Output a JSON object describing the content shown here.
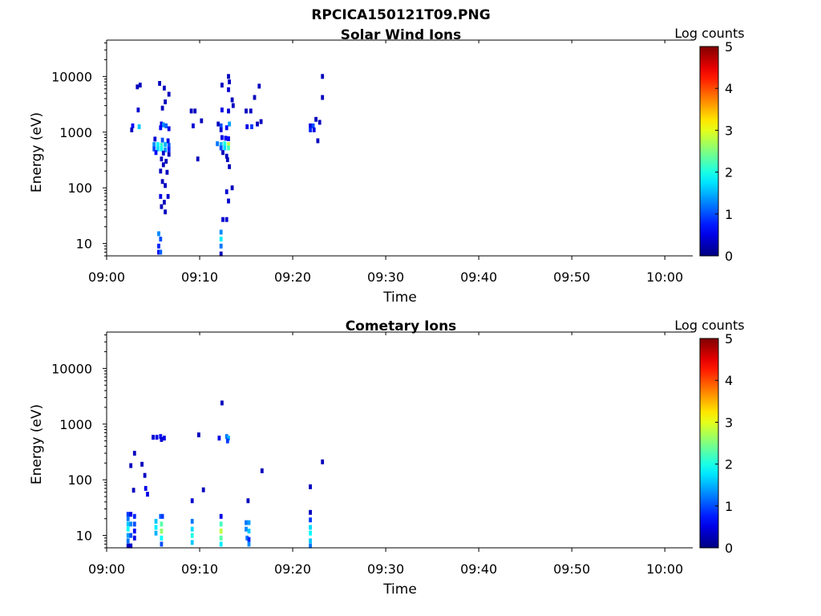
{
  "figure_title": "RPCICA150121T09.PNG",
  "chart_data": [
    {
      "type": "heatmap",
      "title": "Solar Wind Ions",
      "xlabel": "Time",
      "ylabel": "Energy (eV)",
      "y_scale": "log",
      "ylim": [
        6,
        45000
      ],
      "xlim": [
        "09:00",
        "10:03"
      ],
      "x_ticks": [
        "09:00",
        "09:10",
        "09:20",
        "09:30",
        "09:40",
        "09:50",
        "10:00"
      ],
      "y_ticks": [
        "10",
        "100",
        "1000",
        "10000"
      ],
      "colorbar": {
        "label": "Log counts",
        "range": [
          0,
          5
        ],
        "ticks": [
          "0",
          "1",
          "2",
          "3",
          "4",
          "5"
        ],
        "colormap": "jet"
      },
      "cells": [
        {
          "t": 3.3,
          "e": 6500,
          "v": 0.3
        },
        {
          "t": 3.6,
          "e": 7000,
          "v": 0.3
        },
        {
          "t": 3.4,
          "e": 2500,
          "v": 0.4
        },
        {
          "t": 2.8,
          "e": 1300,
          "v": 0.6
        },
        {
          "t": 3.5,
          "e": 1250,
          "v": 1.6
        },
        {
          "t": 2.7,
          "e": 1100,
          "v": 0.3
        },
        {
          "t": 5.7,
          "e": 7500,
          "v": 0.3
        },
        {
          "t": 6.2,
          "e": 6200,
          "v": 0.3
        },
        {
          "t": 6.7,
          "e": 4800,
          "v": 0.3
        },
        {
          "t": 6.3,
          "e": 3500,
          "v": 0.3
        },
        {
          "t": 6.0,
          "e": 2700,
          "v": 0.3
        },
        {
          "t": 5.9,
          "e": 1400,
          "v": 0.5
        },
        {
          "t": 6.1,
          "e": 1350,
          "v": 1.3
        },
        {
          "t": 6.4,
          "e": 1300,
          "v": 1.1
        },
        {
          "t": 5.8,
          "e": 1200,
          "v": 0.6
        },
        {
          "t": 6.7,
          "e": 1150,
          "v": 0.5
        },
        {
          "t": 5.2,
          "e": 750,
          "v": 0.4
        },
        {
          "t": 6.0,
          "e": 720,
          "v": 1.0
        },
        {
          "t": 6.6,
          "e": 700,
          "v": 0.5
        },
        {
          "t": 5.1,
          "e": 600,
          "v": 1.3
        },
        {
          "t": 5.5,
          "e": 600,
          "v": 1.8
        },
        {
          "t": 5.9,
          "e": 580,
          "v": 2.1
        },
        {
          "t": 6.3,
          "e": 600,
          "v": 1.5
        },
        {
          "t": 6.7,
          "e": 580,
          "v": 1.0
        },
        {
          "t": 5.1,
          "e": 500,
          "v": 1.0
        },
        {
          "t": 5.5,
          "e": 500,
          "v": 1.7
        },
        {
          "t": 5.9,
          "e": 500,
          "v": 1.9
        },
        {
          "t": 6.3,
          "e": 480,
          "v": 1.4
        },
        {
          "t": 6.7,
          "e": 490,
          "v": 0.8
        },
        {
          "t": 5.3,
          "e": 430,
          "v": 0.6
        },
        {
          "t": 6.1,
          "e": 420,
          "v": 0.4
        },
        {
          "t": 6.7,
          "e": 400,
          "v": 0.3
        },
        {
          "t": 5.9,
          "e": 330,
          "v": 0.3
        },
        {
          "t": 6.4,
          "e": 300,
          "v": 0.3
        },
        {
          "t": 6.1,
          "e": 260,
          "v": 0.3
        },
        {
          "t": 5.8,
          "e": 200,
          "v": 0.3
        },
        {
          "t": 6.5,
          "e": 190,
          "v": 0.3
        },
        {
          "t": 6.0,
          "e": 130,
          "v": 0.3
        },
        {
          "t": 6.3,
          "e": 110,
          "v": 0.3
        },
        {
          "t": 5.8,
          "e": 70,
          "v": 0.5
        },
        {
          "t": 6.6,
          "e": 70,
          "v": 0.4
        },
        {
          "t": 6.2,
          "e": 55,
          "v": 0.3
        },
        {
          "t": 5.9,
          "e": 46,
          "v": 0.3
        },
        {
          "t": 6.3,
          "e": 37,
          "v": 0.3
        },
        {
          "t": 5.6,
          "e": 15,
          "v": 1.3
        },
        {
          "t": 5.8,
          "e": 12,
          "v": 1.0
        },
        {
          "t": 5.6,
          "e": 9,
          "v": 0.8
        },
        {
          "t": 5.6,
          "e": 7,
          "v": 0.6
        },
        {
          "t": 5.8,
          "e": 7,
          "v": 1.1
        },
        {
          "t": 9.1,
          "e": 2400,
          "v": 0.3
        },
        {
          "t": 9.5,
          "e": 2400,
          "v": 0.3
        },
        {
          "t": 9.3,
          "e": 1300,
          "v": 0.4
        },
        {
          "t": 10.2,
          "e": 1600,
          "v": 0.3
        },
        {
          "t": 9.8,
          "e": 330,
          "v": 0.3
        },
        {
          "t": 12.4,
          "e": 7000,
          "v": 0.3
        },
        {
          "t": 13.1,
          "e": 10000,
          "v": 0.3
        },
        {
          "t": 13.2,
          "e": 8000,
          "v": 0.3
        },
        {
          "t": 13.1,
          "e": 5800,
          "v": 0.4
        },
        {
          "t": 13.5,
          "e": 3800,
          "v": 0.3
        },
        {
          "t": 12.4,
          "e": 2500,
          "v": 0.5
        },
        {
          "t": 13.1,
          "e": 2400,
          "v": 0.4
        },
        {
          "t": 13.6,
          "e": 3000,
          "v": 0.3
        },
        {
          "t": 12.0,
          "e": 1400,
          "v": 0.3
        },
        {
          "t": 12.3,
          "e": 1300,
          "v": 1.0
        },
        {
          "t": 13.2,
          "e": 1400,
          "v": 1.4
        },
        {
          "t": 12.3,
          "e": 1100,
          "v": 0.4
        },
        {
          "t": 12.9,
          "e": 1200,
          "v": 0.6
        },
        {
          "t": 12.4,
          "e": 800,
          "v": 0.5
        },
        {
          "t": 12.8,
          "e": 780,
          "v": 0.6
        },
        {
          "t": 13.1,
          "e": 760,
          "v": 0.6
        },
        {
          "t": 11.9,
          "e": 620,
          "v": 1.2
        },
        {
          "t": 12.3,
          "e": 600,
          "v": 1.5
        },
        {
          "t": 12.7,
          "e": 620,
          "v": 2.0
        },
        {
          "t": 13.1,
          "e": 600,
          "v": 2.8
        },
        {
          "t": 12.3,
          "e": 520,
          "v": 1.0
        },
        {
          "t": 12.7,
          "e": 520,
          "v": 1.7
        },
        {
          "t": 13.1,
          "e": 520,
          "v": 2.2
        },
        {
          "t": 12.5,
          "e": 430,
          "v": 0.3
        },
        {
          "t": 12.9,
          "e": 370,
          "v": 0.3
        },
        {
          "t": 13.0,
          "e": 320,
          "v": 0.3
        },
        {
          "t": 13.2,
          "e": 240,
          "v": 0.3
        },
        {
          "t": 13.5,
          "e": 100,
          "v": 0.3
        },
        {
          "t": 12.9,
          "e": 85,
          "v": 0.4
        },
        {
          "t": 13.1,
          "e": 58,
          "v": 0.4
        },
        {
          "t": 12.5,
          "e": 27,
          "v": 0.4
        },
        {
          "t": 12.9,
          "e": 27,
          "v": 0.4
        },
        {
          "t": 12.3,
          "e": 16,
          "v": 1.3
        },
        {
          "t": 12.3,
          "e": 12,
          "v": 1.8
        },
        {
          "t": 12.3,
          "e": 9,
          "v": 1.2
        },
        {
          "t": 12.3,
          "e": 6.5,
          "v": 0.3
        },
        {
          "t": 15.0,
          "e": 2400,
          "v": 0.3
        },
        {
          "t": 15.5,
          "e": 2400,
          "v": 0.3
        },
        {
          "t": 15.9,
          "e": 4200,
          "v": 0.3
        },
        {
          "t": 16.4,
          "e": 6700,
          "v": 0.3
        },
        {
          "t": 15.1,
          "e": 1250,
          "v": 0.5
        },
        {
          "t": 15.6,
          "e": 1250,
          "v": 0.9
        },
        {
          "t": 16.2,
          "e": 1400,
          "v": 0.3
        },
        {
          "t": 16.6,
          "e": 1550,
          "v": 0.3
        },
        {
          "t": 21.9,
          "e": 1300,
          "v": 0.5
        },
        {
          "t": 22.2,
          "e": 1300,
          "v": 1.0
        },
        {
          "t": 21.9,
          "e": 1100,
          "v": 0.8
        },
        {
          "t": 22.3,
          "e": 1100,
          "v": 0.5
        },
        {
          "t": 22.5,
          "e": 1700,
          "v": 0.3
        },
        {
          "t": 22.9,
          "e": 1500,
          "v": 0.3
        },
        {
          "t": 22.7,
          "e": 700,
          "v": 0.3
        },
        {
          "t": 23.2,
          "e": 10000,
          "v": 0.3
        },
        {
          "t": 23.2,
          "e": 4200,
          "v": 0.3
        }
      ]
    },
    {
      "type": "heatmap",
      "title": "Cometary Ions",
      "xlabel": "Time",
      "ylabel": "Energy (eV)",
      "y_scale": "log",
      "ylim": [
        6,
        45000
      ],
      "xlim": [
        "09:00",
        "10:03"
      ],
      "x_ticks": [
        "09:00",
        "09:10",
        "09:20",
        "09:30",
        "09:40",
        "09:50",
        "10:00"
      ],
      "y_ticks": [
        "10",
        "100",
        "1000",
        "10000"
      ],
      "colorbar": {
        "label": "Log counts",
        "range": [
          0,
          5
        ],
        "ticks": [
          "0",
          "1",
          "2",
          "3",
          "4",
          "5"
        ],
        "colormap": "jet"
      },
      "cells": [
        {
          "t": 2.3,
          "e": 24,
          "v": 0.9
        },
        {
          "t": 2.3,
          "e": 20,
          "v": 1.2
        },
        {
          "t": 2.3,
          "e": 16,
          "v": 1.6
        },
        {
          "t": 2.3,
          "e": 13,
          "v": 1.9
        },
        {
          "t": 2.3,
          "e": 10,
          "v": 1.4
        },
        {
          "t": 2.3,
          "e": 8,
          "v": 1.2
        },
        {
          "t": 2.3,
          "e": 6.5,
          "v": 0.3
        },
        {
          "t": 2.6,
          "e": 24,
          "v": 0.5
        },
        {
          "t": 2.6,
          "e": 16,
          "v": 1.3
        },
        {
          "t": 2.6,
          "e": 10,
          "v": 1.0
        },
        {
          "t": 2.6,
          "e": 6.5,
          "v": 0.4
        },
        {
          "t": 3.0,
          "e": 22,
          "v": 0.8
        },
        {
          "t": 3.0,
          "e": 16,
          "v": 1.0
        },
        {
          "t": 3.0,
          "e": 12,
          "v": 0.6
        },
        {
          "t": 3.0,
          "e": 9,
          "v": 0.5
        },
        {
          "t": 2.6,
          "e": 180,
          "v": 0.3
        },
        {
          "t": 3.0,
          "e": 300,
          "v": 0.3
        },
        {
          "t": 3.8,
          "e": 190,
          "v": 0.3
        },
        {
          "t": 4.1,
          "e": 120,
          "v": 0.3
        },
        {
          "t": 2.9,
          "e": 65,
          "v": 0.3
        },
        {
          "t": 4.2,
          "e": 70,
          "v": 0.5
        },
        {
          "t": 4.4,
          "e": 55,
          "v": 0.5
        },
        {
          "t": 5.0,
          "e": 580,
          "v": 0.4
        },
        {
          "t": 5.4,
          "e": 580,
          "v": 0.5
        },
        {
          "t": 5.8,
          "e": 600,
          "v": 0.7
        },
        {
          "t": 6.2,
          "e": 560,
          "v": 0.5
        },
        {
          "t": 5.9,
          "e": 530,
          "v": 0.4
        },
        {
          "t": 5.3,
          "e": 18,
          "v": 1.6
        },
        {
          "t": 5.3,
          "e": 14,
          "v": 1.8
        },
        {
          "t": 5.3,
          "e": 11,
          "v": 1.5
        },
        {
          "t": 5.8,
          "e": 22,
          "v": 1.1
        },
        {
          "t": 6.0,
          "e": 22,
          "v": 0.9
        },
        {
          "t": 5.9,
          "e": 16,
          "v": 2.3
        },
        {
          "t": 5.9,
          "e": 12,
          "v": 2.6
        },
        {
          "t": 5.9,
          "e": 9,
          "v": 1.9
        },
        {
          "t": 5.9,
          "e": 7,
          "v": 1.0
        },
        {
          "t": 9.2,
          "e": 42,
          "v": 0.4
        },
        {
          "t": 9.2,
          "e": 18,
          "v": 1.2
        },
        {
          "t": 9.2,
          "e": 13,
          "v": 1.7
        },
        {
          "t": 9.2,
          "e": 10,
          "v": 2.0
        },
        {
          "t": 9.2,
          "e": 7.5,
          "v": 1.6
        },
        {
          "t": 9.9,
          "e": 640,
          "v": 0.3
        },
        {
          "t": 10.4,
          "e": 66,
          "v": 0.3
        },
        {
          "t": 12.4,
          "e": 2400,
          "v": 0.3
        },
        {
          "t": 12.1,
          "e": 560,
          "v": 0.5
        },
        {
          "t": 12.9,
          "e": 600,
          "v": 1.2
        },
        {
          "t": 13.1,
          "e": 560,
          "v": 1.5
        },
        {
          "t": 13.0,
          "e": 500,
          "v": 0.9
        },
        {
          "t": 12.3,
          "e": 22,
          "v": 0.5
        },
        {
          "t": 12.3,
          "e": 16,
          "v": 2.2
        },
        {
          "t": 12.3,
          "e": 12,
          "v": 2.8
        },
        {
          "t": 12.3,
          "e": 9,
          "v": 2.3
        },
        {
          "t": 12.3,
          "e": 7,
          "v": 1.8
        },
        {
          "t": 15.2,
          "e": 42,
          "v": 0.3
        },
        {
          "t": 15.0,
          "e": 17,
          "v": 1.2
        },
        {
          "t": 15.3,
          "e": 17,
          "v": 1.4
        },
        {
          "t": 15.0,
          "e": 13,
          "v": 1.3
        },
        {
          "t": 15.3,
          "e": 12,
          "v": 1.6
        },
        {
          "t": 15.1,
          "e": 9,
          "v": 1.2
        },
        {
          "t": 15.3,
          "e": 8.5,
          "v": 0.8
        },
        {
          "t": 15.3,
          "e": 7,
          "v": 1.3
        },
        {
          "t": 16.7,
          "e": 145,
          "v": 0.3
        },
        {
          "t": 21.9,
          "e": 75,
          "v": 0.3
        },
        {
          "t": 21.9,
          "e": 26,
          "v": 0.3
        },
        {
          "t": 21.9,
          "e": 19,
          "v": 0.9
        },
        {
          "t": 21.9,
          "e": 14,
          "v": 1.7
        },
        {
          "t": 21.9,
          "e": 11,
          "v": 1.9
        },
        {
          "t": 21.9,
          "e": 8,
          "v": 1.6
        },
        {
          "t": 21.9,
          "e": 6.5,
          "v": 1.2
        },
        {
          "t": 23.2,
          "e": 210,
          "v": 0.3
        }
      ]
    }
  ]
}
